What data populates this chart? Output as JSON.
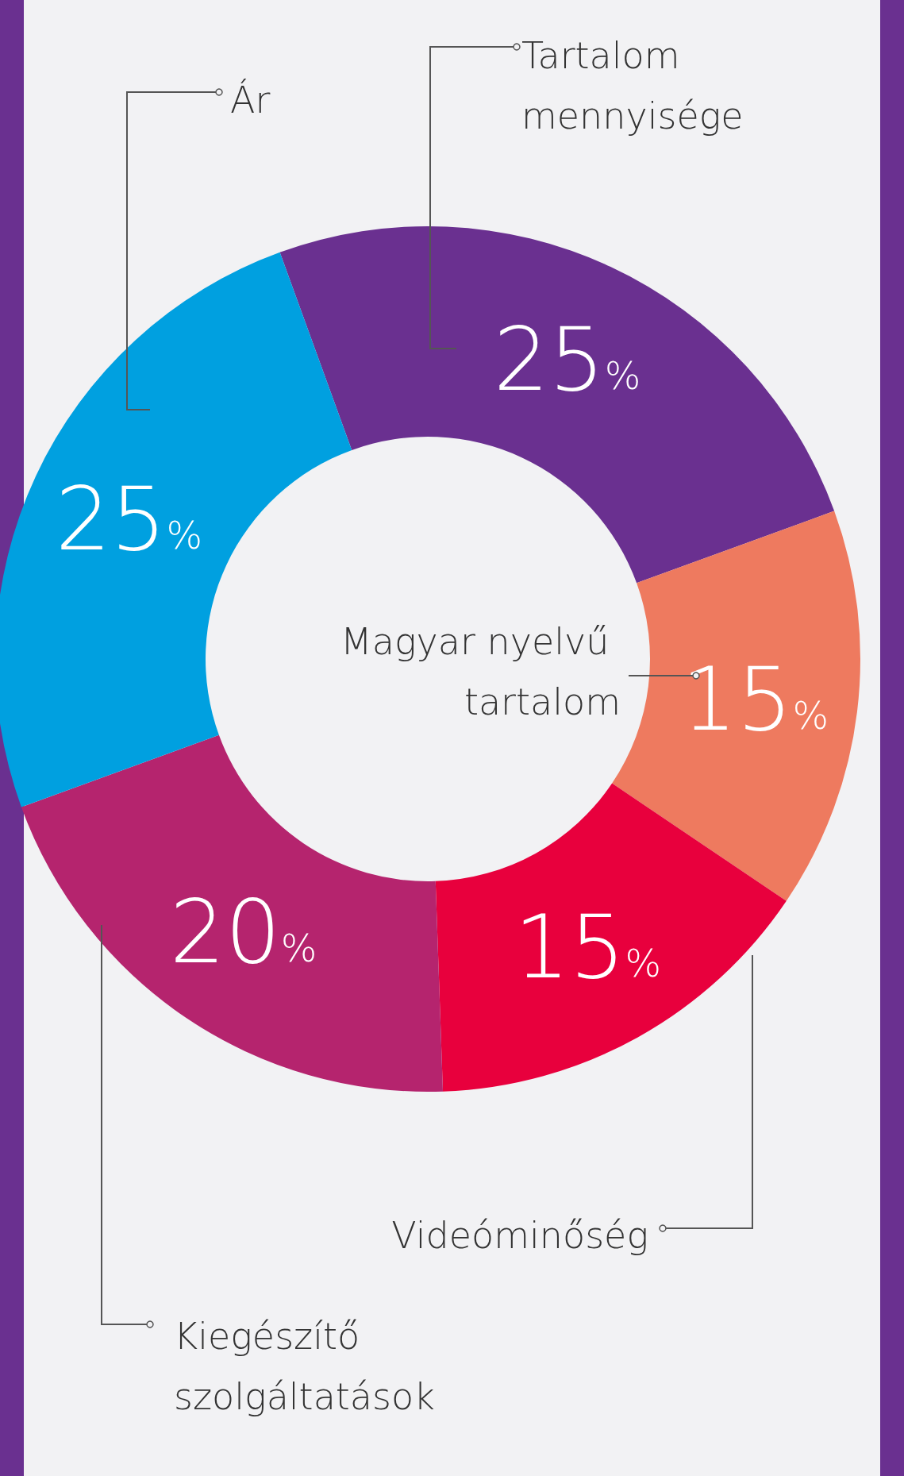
{
  "chart_data": {
    "type": "donut",
    "categories": [
      "Tartalom mennyisége",
      "Magyar nyelvű tartalom",
      "Videóminőség",
      "Kiegészítő szolgáltatások",
      "Ár"
    ],
    "values": [
      25,
      15,
      15,
      20,
      25
    ],
    "value_labels": [
      "25%",
      "15%",
      "15%",
      "20%",
      "25%"
    ],
    "colors": [
      "#6a3090",
      "#ee7a5f",
      "#e8003d",
      "#b5246e",
      "#00a0e0"
    ],
    "legend": false
  }
}
